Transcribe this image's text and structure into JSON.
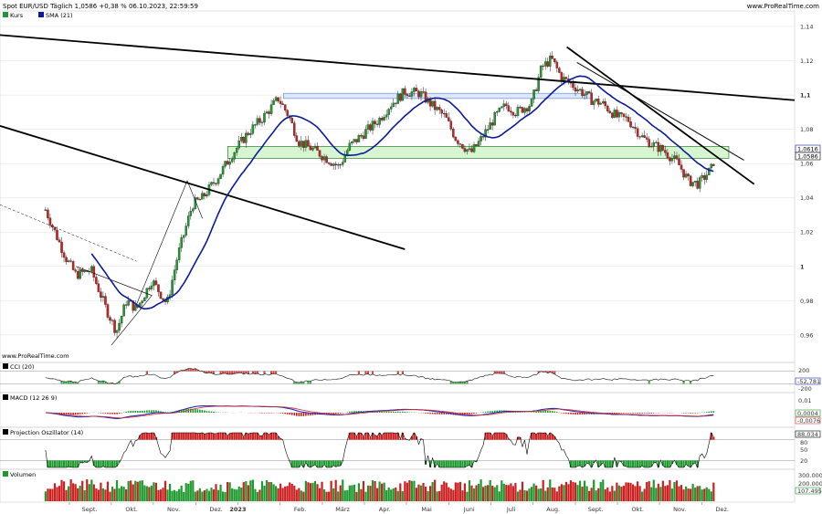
{
  "header": {
    "title": "Spot EUR/USD Täglich 1,0586 +0,38 % 06.10.2023, 22:59:59",
    "source": "www.ProRealTime.com"
  },
  "colors": {
    "up": "#1e9a2e",
    "down": "#cc2020",
    "sma": "#0a1a9a",
    "zone_blue_fill": "#dde8fb",
    "zone_blue_stroke": "#6c8fd6",
    "zone_green_fill": "#d6f5d0",
    "zone_green_stroke": "#2e7d32",
    "grid": "#e0e0e0",
    "macd": "#1b2bb5",
    "signal": "#d33",
    "osc": "#000000"
  },
  "chart_data": [
    {
      "type": "candlestick",
      "title": "Spot EUR/USD Täglich",
      "legend": [
        {
          "name": "Kurs",
          "color": "#1e9a2e"
        },
        {
          "name": "SMA (21)",
          "color": "#0a1a9a"
        }
      ],
      "y_ticks": [
        "1,14",
        "1,12",
        "1,1",
        "1,08",
        "1,06",
        "1,04",
        "1,02",
        "1",
        "0,98",
        "0,96"
      ],
      "y_tick_values": [
        1.14,
        1.12,
        1.1,
        1.08,
        1.06,
        1.04,
        1.02,
        1.0,
        0.98,
        0.96
      ],
      "ylim": [
        0.945,
        1.148
      ],
      "x_ticks": [
        "Sept.",
        "Okt.",
        "Nov.",
        "Dez.",
        "2023",
        "Feb.",
        "März",
        "Apr.",
        "Mai",
        "Juni",
        "Juli",
        "Aug.",
        "Sept.",
        "Okt.",
        "Nov.",
        "Dez."
      ],
      "last_values": {
        "sma": "1,0616",
        "close": "1,0586"
      },
      "path_points": [
        [
          2022.62,
          1.033
        ],
        [
          2022.66,
          1.005
        ],
        [
          2022.68,
          0.995
        ],
        [
          2022.71,
          0.998
        ],
        [
          2022.74,
          0.975
        ],
        [
          2022.76,
          0.962
        ],
        [
          2022.78,
          0.98
        ],
        [
          2022.8,
          0.975
        ],
        [
          2022.83,
          0.992
        ],
        [
          2022.86,
          0.978
        ],
        [
          2022.88,
          1.005
        ],
        [
          2022.91,
          1.036
        ],
        [
          2022.93,
          1.04
        ],
        [
          2022.96,
          1.052
        ],
        [
          2022.99,
          1.066
        ],
        [
          2023.02,
          1.078
        ],
        [
          2023.05,
          1.087
        ],
        [
          2023.08,
          1.098
        ],
        [
          2023.1,
          1.088
        ],
        [
          2023.12,
          1.073
        ],
        [
          2023.15,
          1.068
        ],
        [
          2023.18,
          1.062
        ],
        [
          2023.2,
          1.058
        ],
        [
          2023.22,
          1.07
        ],
        [
          2023.25,
          1.078
        ],
        [
          2023.28,
          1.086
        ],
        [
          2023.3,
          1.094
        ],
        [
          2023.33,
          1.102
        ],
        [
          2023.36,
          1.101
        ],
        [
          2023.38,
          1.095
        ],
        [
          2023.41,
          1.087
        ],
        [
          2023.43,
          1.075
        ],
        [
          2023.46,
          1.066
        ],
        [
          2023.48,
          1.074
        ],
        [
          2023.51,
          1.088
        ],
        [
          2023.53,
          1.094
        ],
        [
          2023.55,
          1.09
        ],
        [
          2023.58,
          1.095
        ],
        [
          2023.6,
          1.116
        ],
        [
          2023.62,
          1.121
        ],
        [
          2023.64,
          1.11
        ],
        [
          2023.67,
          1.104
        ],
        [
          2023.7,
          1.097
        ],
        [
          2023.72,
          1.095
        ],
        [
          2023.75,
          1.087
        ],
        [
          2023.77,
          1.086
        ],
        [
          2023.8,
          1.075
        ],
        [
          2023.82,
          1.071
        ],
        [
          2023.84,
          1.068
        ],
        [
          2023.87,
          1.06
        ],
        [
          2023.89,
          1.05
        ],
        [
          2023.91,
          1.048
        ],
        [
          2023.93,
          1.055
        ],
        [
          2023.94,
          1.0586
        ]
      ],
      "zones": [
        {
          "name": "blue-zone",
          "from": 1.098,
          "to": 1.101,
          "x_from": 2023.09,
          "x_to": 2023.7
        },
        {
          "name": "green-zone",
          "from": 1.063,
          "to": 1.07,
          "x_from": 2022.98,
          "x_to": 2023.97
        }
      ],
      "trendlines": [
        {
          "x1": 2022.53,
          "y1": 1.135,
          "x2": 2024.1,
          "y2": 1.097
        },
        {
          "x1": 2022.53,
          "y1": 1.082,
          "x2": 2023.33,
          "y2": 1.01
        },
        {
          "x1": 2023.65,
          "y1": 1.128,
          "x2": 2024.02,
          "y2": 1.048
        },
        {
          "x1": 2023.67,
          "y1": 1.119,
          "x2": 2024.0,
          "y2": 1.062
        }
      ]
    },
    {
      "type": "line",
      "title": "CCI (20)",
      "y_ticks": [
        "200",
        "-52,781",
        "-200"
      ],
      "last_value": "-52,781"
    },
    {
      "type": "line",
      "title": "MACD (12 26 9)",
      "y_ticks": [
        "0,01",
        "0,0004",
        "-0,0076"
      ],
      "last_values": {
        "hist": "0,0004",
        "signal": "-0,0076"
      }
    },
    {
      "type": "line",
      "title": "Projection Oszillator (14)",
      "y_ticks": [
        "88,034",
        "80",
        "50",
        "20"
      ],
      "last_value": "88,034"
    },
    {
      "type": "bar",
      "title": "Volumen",
      "y_ticks": [
        "300.000",
        "200.000",
        "107.495"
      ],
      "last_value": "107.495"
    }
  ]
}
